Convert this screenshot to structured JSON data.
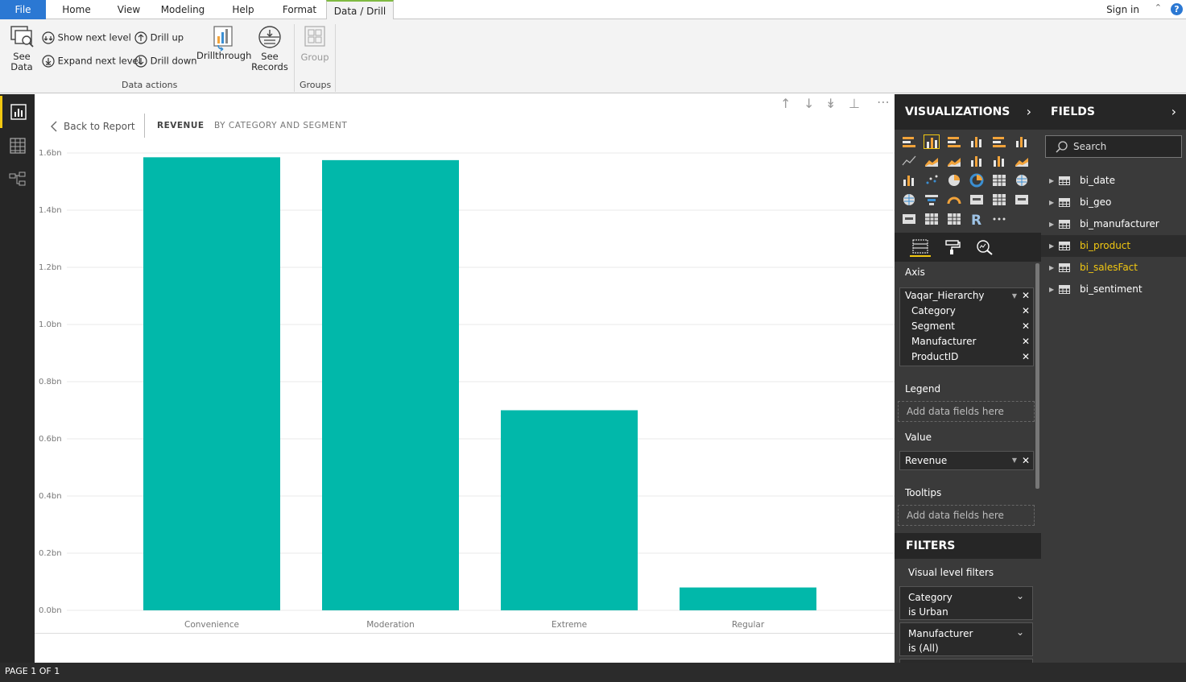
{
  "tabs": [
    {
      "label": "File",
      "key": "file"
    },
    {
      "label": "Home",
      "key": "home"
    },
    {
      "label": "View",
      "key": "view"
    },
    {
      "label": "Modeling",
      "key": "modeling"
    },
    {
      "label": "Help",
      "key": "help"
    },
    {
      "label": "Format",
      "key": "format"
    },
    {
      "label": "Data / Drill",
      "key": "data-drill",
      "active": true
    }
  ],
  "header": {
    "signin": "Sign in",
    "help_glyph": "?"
  },
  "ribbon": {
    "see_data": "See\nData",
    "show_next_level": "Show next level",
    "expand_next_level": "Expand next level",
    "drill_up": "Drill up",
    "drill_down": "Drill down",
    "drillthrough": "Drillthrough",
    "see_records": "See\nRecords",
    "group": "Group",
    "group_data_actions": "Data actions",
    "group_groups": "Groups"
  },
  "visual": {
    "back_label": "Back to Report",
    "title": "REVENUE",
    "subtitle": "BY CATEGORY AND SEGMENT"
  },
  "chart_data": {
    "type": "bar",
    "categories": [
      "Convenience",
      "Moderation",
      "Extreme",
      "Regular"
    ],
    "values": [
      1.585,
      1.575,
      0.7,
      0.08
    ],
    "ylim": [
      0,
      1.6
    ],
    "yticks": [
      0,
      0.2,
      0.4,
      0.6,
      0.8,
      1.0,
      1.2,
      1.4,
      1.6
    ],
    "ytick_labels": [
      "0.0bn",
      "0.2bn",
      "0.4bn",
      "0.6bn",
      "0.8bn",
      "1.0bn",
      "1.2bn",
      "1.4bn",
      "1.6bn"
    ],
    "bar_color": "#01b8aa",
    "grid": true
  },
  "status": {
    "page": "PAGE 1 OF 1"
  },
  "viz": {
    "header": "VISUALIZATIONS",
    "axis_label": "Axis",
    "axis_fields": [
      {
        "label": "Vaqar_Hierarchy",
        "sub": false,
        "dropdown": true
      },
      {
        "label": "Category",
        "sub": true
      },
      {
        "label": "Segment",
        "sub": true
      },
      {
        "label": "Manufacturer",
        "sub": true
      },
      {
        "label": "ProductID",
        "sub": true
      }
    ],
    "legend_label": "Legend",
    "value_label": "Value",
    "value_field": "Revenue",
    "tooltips_label": "Tooltips",
    "add_placeholder": "Add data fields here",
    "filters_header": "FILTERS",
    "visual_filters_label": "Visual level filters",
    "filters": [
      {
        "name": "Category",
        "state": "is Urban"
      },
      {
        "name": "Manufacturer",
        "state": "is (All)"
      }
    ]
  },
  "fields": {
    "header": "FIELDS",
    "search_placeholder": "Search",
    "tables": [
      {
        "name": "bi_date",
        "highlight": false
      },
      {
        "name": "bi_geo",
        "highlight": false
      },
      {
        "name": "bi_manufacturer",
        "highlight": false
      },
      {
        "name": "bi_product",
        "highlight": true,
        "selected": true
      },
      {
        "name": "bi_salesFact",
        "highlight": true
      },
      {
        "name": "bi_sentiment",
        "highlight": false
      }
    ]
  },
  "colors": {
    "accent": "#f2c811",
    "file_tab": "#2b78d3",
    "bar": "#01b8aa",
    "pane": "#3a3a3a"
  }
}
